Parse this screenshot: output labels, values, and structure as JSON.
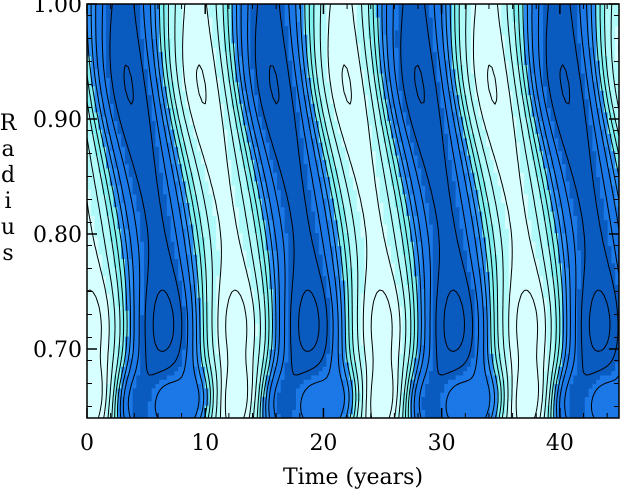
{
  "chart_data": {
    "type": "heatmap",
    "title": "",
    "xlabel": "Time (years)",
    "ylabel": "Radius",
    "xlim": [
      0,
      45
    ],
    "ylim": [
      0.64,
      1.0
    ],
    "x_ticks": [
      0,
      10,
      20,
      30,
      40
    ],
    "x_tick_labels": [
      "0",
      "10",
      "20",
      "30",
      "40"
    ],
    "y_ticks": [
      0.7,
      0.8,
      0.9,
      1.0
    ],
    "y_tick_labels": [
      "0.70",
      "0.80",
      "0.90",
      "1.00"
    ],
    "grid": false,
    "legend": "none",
    "period_years": 12.3,
    "contour_levels": [
      -0.9,
      -0.7,
      -0.5,
      -0.3,
      -0.15,
      0.0,
      0.15,
      0.3,
      0.5,
      0.7,
      0.9
    ],
    "fill_colors": {
      "strong_negative": "#0a5bbf",
      "negative": "#1b78e6",
      "weak_negative": "#2b8ff5",
      "weak_positive": "#7ff0f0",
      "positive": "#b0fafa",
      "strong_positive": "#d8ffff"
    },
    "contour_color": "#000000",
    "frame_color": "#000000"
  }
}
